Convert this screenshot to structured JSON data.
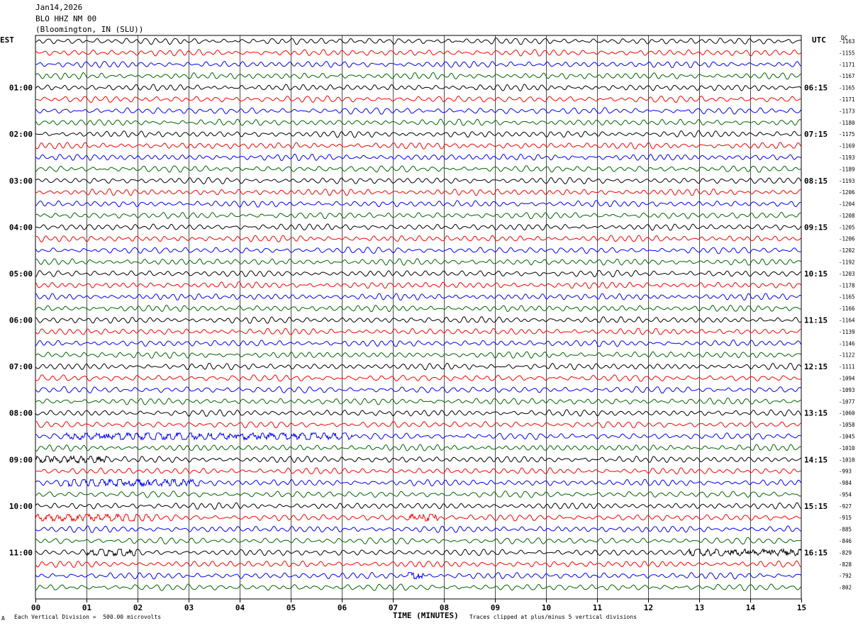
{
  "header": {
    "date": "Jan14,2026",
    "station": "BLO HHZ NM 00",
    "location": "(Bloomington, IN (SLU))"
  },
  "left_tz": "EST",
  "right_tz": "UTC",
  "dc_label": "DC",
  "footer": {
    "scale": "Each Vertical Division =  500.00 microvolts",
    "clip": "Traces clipped at plus/minus 5 vertical divisions",
    "corner_mark": "A"
  },
  "colors": {
    "cycle": [
      "#000000",
      "#ff0000",
      "#0000ff",
      "#006400"
    ],
    "grid": "#000000",
    "background": "#ffffff"
  },
  "chart_data": {
    "type": "line",
    "title": "BLO HHZ NM 00",
    "xlabel": "TIME (MINUTES)",
    "ylabel": "",
    "x_range": [
      0,
      15
    ],
    "x_ticks": [
      "00",
      "01",
      "02",
      "03",
      "04",
      "05",
      "06",
      "07",
      "08",
      "09",
      "10",
      "11",
      "12",
      "13",
      "14",
      "15"
    ],
    "left_hour_labels": [
      "01:00",
      "02:00",
      "03:00",
      "04:00",
      "05:00",
      "06:00",
      "07:00",
      "08:00",
      "09:00",
      "10:00",
      "11:00"
    ],
    "right_hour_labels": [
      "06:15",
      "07:15",
      "08:15",
      "09:15",
      "10:15",
      "11:15",
      "12:15",
      "13:15",
      "14:15",
      "15:15",
      "16:15"
    ],
    "trace_minutes_per_line": 15,
    "trace_count": 48,
    "dc_offsets": [
      -1163,
      -1155,
      -1171,
      -1167,
      -1165,
      -1171,
      -1173,
      -1180,
      -1175,
      -1169,
      -1193,
      -1189,
      -1193,
      -1206,
      -1204,
      -1208,
      -1205,
      -1206,
      -1202,
      -1192,
      -1203,
      -1178,
      -1165,
      -1166,
      -1164,
      -1139,
      -1146,
      -1122,
      -1111,
      -1094,
      -1093,
      -1077,
      -1060,
      -1058,
      -1045,
      -1010,
      -1010,
      -993,
      -984,
      -954,
      -927,
      -915,
      -885,
      -846,
      -829,
      -828,
      -792,
      -802
    ],
    "burst_events": [
      {
        "trace": 34,
        "x_min_start": 0.6,
        "x_min_end": 6.2,
        "strength": 1.6
      },
      {
        "trace": 36,
        "x_min_start": 0.0,
        "x_min_end": 1.4,
        "strength": 1.5
      },
      {
        "trace": 38,
        "x_min_start": 0.6,
        "x_min_end": 3.2,
        "strength": 1.9
      },
      {
        "trace": 41,
        "x_min_start": 0.0,
        "x_min_end": 2.3,
        "strength": 1.7
      },
      {
        "trace": 41,
        "x_min_start": 7.3,
        "x_min_end": 7.9,
        "strength": 1.8
      },
      {
        "trace": 44,
        "x_min_start": 1.0,
        "x_min_end": 2.0,
        "strength": 1.5
      },
      {
        "trace": 44,
        "x_min_start": 12.8,
        "x_min_end": 15.0,
        "strength": 1.6
      },
      {
        "trace": 46,
        "x_min_start": 7.3,
        "x_min_end": 7.6,
        "strength": 2.2
      }
    ],
    "grid": true,
    "clip_divisions": 5
  }
}
